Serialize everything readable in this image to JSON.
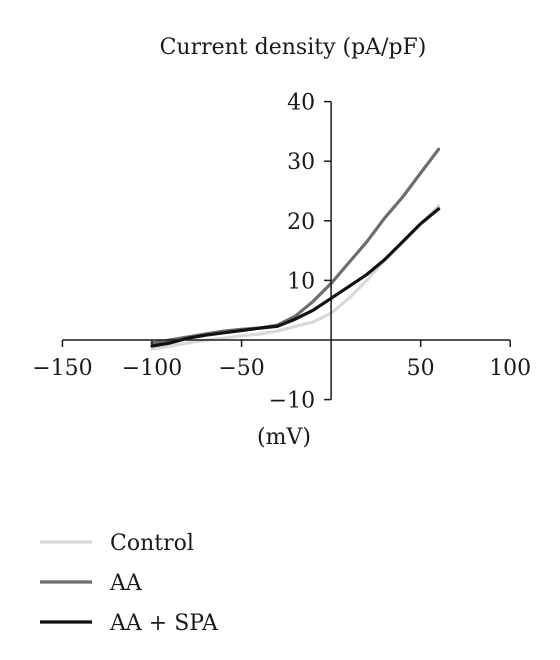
{
  "chart_data": {
    "type": "line",
    "ylabel": "Current density (pA/pF)",
    "xlabel": "(mV)",
    "xlim": [
      -150,
      100
    ],
    "ylim": [
      -10,
      40
    ],
    "x_ticks": [
      -150,
      -100,
      -50,
      50,
      100
    ],
    "y_ticks": [
      -10,
      10,
      20,
      30,
      40
    ],
    "x_tick_labels": [
      "−150",
      "−100",
      "−50",
      "50",
      "100"
    ],
    "y_tick_labels": [
      "−10",
      "10",
      "20",
      "30",
      "40"
    ],
    "grid": false,
    "legend_position": "bottom-left",
    "series": [
      {
        "name": "Control",
        "color": "#d9d9d9",
        "x": [
          -100,
          -90,
          -80,
          -70,
          -60,
          -50,
          -40,
          -30,
          -20,
          -10,
          0,
          10,
          20,
          30,
          40,
          50,
          60
        ],
        "y": [
          -1.5,
          -1.0,
          -0.5,
          0.0,
          0.3,
          0.7,
          1.0,
          1.5,
          2.3,
          3.0,
          4.5,
          7.0,
          10.0,
          13.5,
          16.5,
          19.5,
          22.5
        ]
      },
      {
        "name": "AA",
        "color": "#6d6d6d",
        "x": [
          -100,
          -90,
          -80,
          -70,
          -60,
          -50,
          -40,
          -30,
          -20,
          -10,
          0,
          10,
          20,
          30,
          40,
          50,
          60
        ],
        "y": [
          -0.5,
          0.0,
          0.5,
          1.0,
          1.5,
          1.8,
          2.0,
          2.5,
          4.0,
          6.5,
          9.5,
          13.0,
          16.5,
          20.5,
          24.0,
          28.0,
          32.0
        ]
      },
      {
        "name": "AA + SPA",
        "color": "#111111",
        "x": [
          -100,
          -90,
          -80,
          -70,
          -60,
          -50,
          -40,
          -30,
          -20,
          -10,
          0,
          10,
          20,
          30,
          40,
          50,
          60
        ],
        "y": [
          -1.0,
          -0.5,
          0.3,
          0.8,
          1.2,
          1.6,
          2.0,
          2.3,
          3.5,
          5.0,
          7.0,
          9.0,
          11.0,
          13.5,
          16.5,
          19.5,
          22.0
        ]
      }
    ]
  }
}
